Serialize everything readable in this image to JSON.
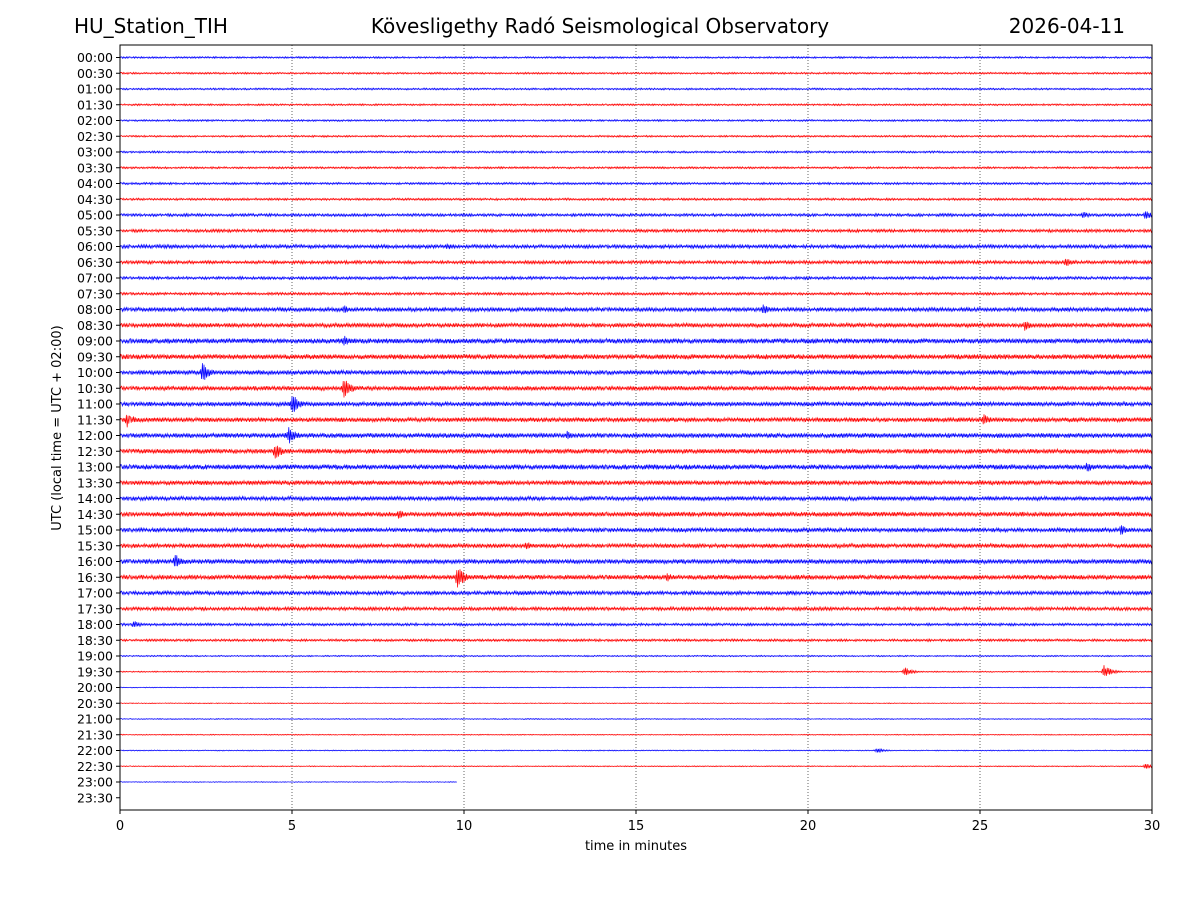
{
  "header": {
    "station": "HU_Station_TIH",
    "title": "Kövesligethy Radó Seismological Observatory",
    "date": "2026-04-11"
  },
  "chart_data": {
    "type": "line",
    "subtype": "helicorder",
    "xlabel": "time in minutes",
    "ylabel": "UTC (local time = UTC + 02:00)",
    "xlim": [
      0,
      30
    ],
    "x_ticks": [
      0,
      5,
      10,
      15,
      20,
      25,
      30
    ],
    "grid": "vertical dotted lines at x ticks",
    "series_colors": [
      "#0000ff",
      "#ff0000"
    ],
    "row_labels": [
      "00:00",
      "00:30",
      "01:00",
      "01:30",
      "02:00",
      "02:30",
      "03:00",
      "03:30",
      "04:00",
      "04:30",
      "05:00",
      "05:30",
      "06:00",
      "06:30",
      "07:00",
      "07:30",
      "08:00",
      "08:30",
      "09:00",
      "09:30",
      "10:00",
      "10:30",
      "11:00",
      "11:30",
      "12:00",
      "12:30",
      "13:00",
      "13:30",
      "14:00",
      "14:30",
      "15:00",
      "15:30",
      "16:00",
      "16:30",
      "17:00",
      "17:30",
      "18:00",
      "18:30",
      "19:00",
      "19:30",
      "20:00",
      "20:30",
      "21:00",
      "21:30",
      "22:00",
      "22:30",
      "23:00",
      "23:30"
    ],
    "noise_level": [
      0.9,
      0.9,
      0.9,
      0.9,
      0.9,
      0.9,
      1.0,
      1.0,
      1.1,
      1.1,
      1.4,
      1.5,
      1.8,
      1.6,
      1.4,
      1.3,
      2.0,
      2.1,
      2.5,
      2.5,
      2.2,
      2.2,
      2.1,
      2.2,
      2.4,
      2.3,
      2.5,
      2.2,
      2.1,
      2.3,
      2.0,
      2.1,
      2.3,
      2.3,
      1.9,
      1.7,
      1.3,
      1.2,
      0.7,
      0.6,
      0.4,
      0.4,
      0.5,
      0.5,
      0.5,
      0.5,
      0.4,
      0
    ],
    "rows_end_minute": {
      "23:00": 9.8
    },
    "events": [
      {
        "row": "05:00",
        "minute": 28.0,
        "amp": 4
      },
      {
        "row": "05:00",
        "minute": 29.8,
        "amp": 5
      },
      {
        "row": "06:00",
        "minute": 9.5,
        "amp": 4
      },
      {
        "row": "06:30",
        "minute": 27.5,
        "amp": 5
      },
      {
        "row": "08:00",
        "minute": 6.5,
        "amp": 5
      },
      {
        "row": "08:00",
        "minute": 18.7,
        "amp": 6
      },
      {
        "row": "08:30",
        "minute": 26.3,
        "amp": 6
      },
      {
        "row": "09:00",
        "minute": 6.5,
        "amp": 6
      },
      {
        "row": "10:00",
        "minute": 2.4,
        "amp": 10
      },
      {
        "row": "10:30",
        "minute": 6.5,
        "amp": 12
      },
      {
        "row": "11:00",
        "minute": 5.0,
        "amp": 11
      },
      {
        "row": "11:30",
        "minute": 0.2,
        "amp": 8
      },
      {
        "row": "11:30",
        "minute": 25.1,
        "amp": 6
      },
      {
        "row": "12:00",
        "minute": 4.9,
        "amp": 10
      },
      {
        "row": "12:00",
        "minute": 13.0,
        "amp": 5
      },
      {
        "row": "12:30",
        "minute": 4.5,
        "amp": 9
      },
      {
        "row": "13:00",
        "minute": 28.1,
        "amp": 6
      },
      {
        "row": "14:30",
        "minute": 8.1,
        "amp": 5
      },
      {
        "row": "15:00",
        "minute": 29.1,
        "amp": 6
      },
      {
        "row": "15:30",
        "minute": 11.8,
        "amp": 5
      },
      {
        "row": "16:00",
        "minute": 1.6,
        "amp": 8
      },
      {
        "row": "16:30",
        "minute": 9.8,
        "amp": 12
      },
      {
        "row": "16:30",
        "minute": 15.9,
        "amp": 5
      },
      {
        "row": "18:00",
        "minute": 0.4,
        "amp": 4
      },
      {
        "row": "19:30",
        "minute": 22.8,
        "amp": 5
      },
      {
        "row": "19:30",
        "minute": 28.6,
        "amp": 7
      },
      {
        "row": "22:00",
        "minute": 22.0,
        "amp": 3
      },
      {
        "row": "22:30",
        "minute": 29.8,
        "amp": 3
      }
    ]
  }
}
